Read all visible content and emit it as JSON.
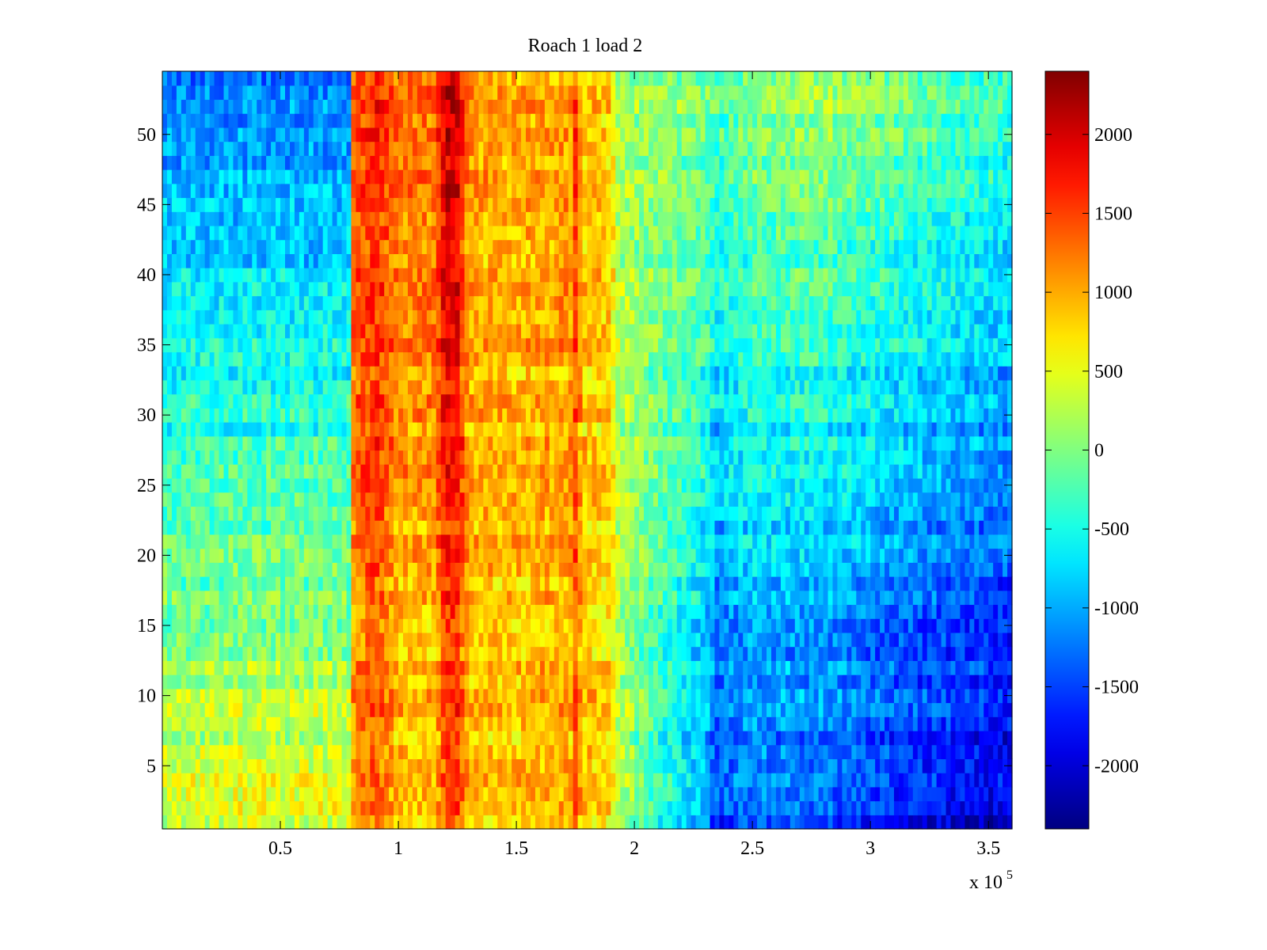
{
  "chart_data": {
    "type": "heatmap",
    "title": "Roach 1 load 2",
    "xlabel": "",
    "ylabel": "",
    "x_exponent_label": "x 10",
    "x_exponent_power": "5",
    "xlim": [
      0,
      3.6
    ],
    "ylim": [
      0.5,
      54.5
    ],
    "x_ticks": [
      0.5,
      1,
      1.5,
      2,
      2.5,
      3,
      3.5
    ],
    "x_tick_labels": [
      "0.5",
      "1",
      "1.5",
      "2",
      "2.5",
      "3",
      "3.5"
    ],
    "y_ticks": [
      5,
      10,
      15,
      20,
      25,
      30,
      35,
      40,
      45,
      50
    ],
    "y_tick_labels": [
      "5",
      "10",
      "15",
      "20",
      "25",
      "30",
      "35",
      "40",
      "45",
      "50"
    ],
    "rows": 54,
    "colorbar": {
      "colormap": "jet",
      "clim": [
        -2400,
        2400
      ],
      "ticks": [
        -2000,
        -1500,
        -1000,
        -500,
        0,
        500,
        1000,
        1500,
        2000
      ],
      "tick_labels": [
        "-2000",
        "-1500",
        "-1000",
        "-500",
        "0",
        "500",
        "1000",
        "1500",
        "2000"
      ]
    },
    "value_profile_x": [
      0,
      0.4,
      0.79,
      0.81,
      0.9,
      1.0,
      1.15,
      1.2,
      1.25,
      1.3,
      1.5,
      1.73,
      1.75,
      1.78,
      1.9,
      1.93,
      2.1,
      2.3,
      2.35,
      2.5,
      2.8,
      3.1,
      3.6
    ],
    "value_profile_bottom": [
      450,
      500,
      500,
      1000,
      1300,
      850,
      850,
      1350,
      1450,
      850,
      850,
      950,
      1300,
      850,
      750,
      300,
      -400,
      -1000,
      -1500,
      -1300,
      -1400,
      -1700,
      -2000
    ],
    "value_profile_top": [
      -1200,
      -1200,
      -1200,
      1400,
      1700,
      1300,
      1300,
      2100,
      2000,
      1100,
      1000,
      1100,
      1500,
      900,
      800,
      200,
      100,
      0,
      -200,
      100,
      200,
      0,
      -300
    ]
  },
  "colors": {
    "axes": "#000000",
    "background": "#ffffff"
  }
}
